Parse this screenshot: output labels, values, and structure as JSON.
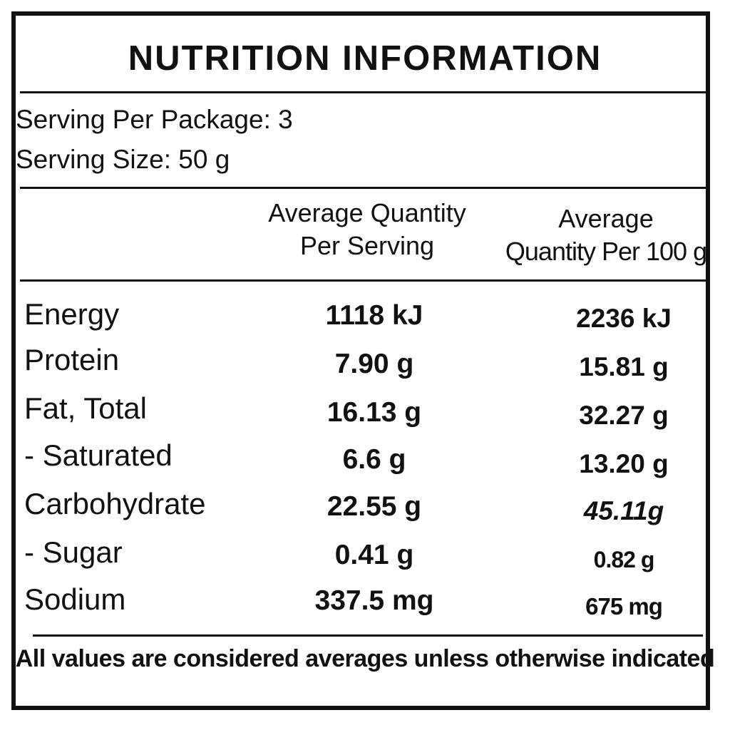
{
  "label": {
    "title": "NUTRITION INFORMATION",
    "serving_per_package": "Serving Per Package: 3",
    "serving_size": "Serving Size: 50 g",
    "column_headers": {
      "per_serving_line1": "Average Quantity",
      "per_serving_line2": "Per Serving",
      "per_100g_line1": "Average",
      "per_100g_line2": "Quantity  Per 100 g"
    },
    "rows": [
      {
        "nutrient": "Energy",
        "per_serving": "1118 kJ",
        "per_100g": "2236 kJ"
      },
      {
        "nutrient": "Protein",
        "per_serving": "7.90 g",
        "per_100g": "15.81 g"
      },
      {
        "nutrient": "Fat, Total",
        "per_serving": "16.13 g",
        "per_100g": "32.27 g"
      },
      {
        "nutrient": "- Saturated",
        "per_serving": "6.6 g",
        "per_100g": "13.20 g"
      },
      {
        "nutrient": "Carbohydrate",
        "per_serving": "22.55 g",
        "per_100g": "45.11g"
      },
      {
        "nutrient": "- Sugar",
        "per_serving": "0.41 g",
        "per_100g": "0.82 g"
      },
      {
        "nutrient": "Sodium",
        "per_serving": "337.5 mg",
        "per_100g": "675 mg"
      }
    ],
    "footnote": "All values are considered averages unless otherwise indicated"
  }
}
